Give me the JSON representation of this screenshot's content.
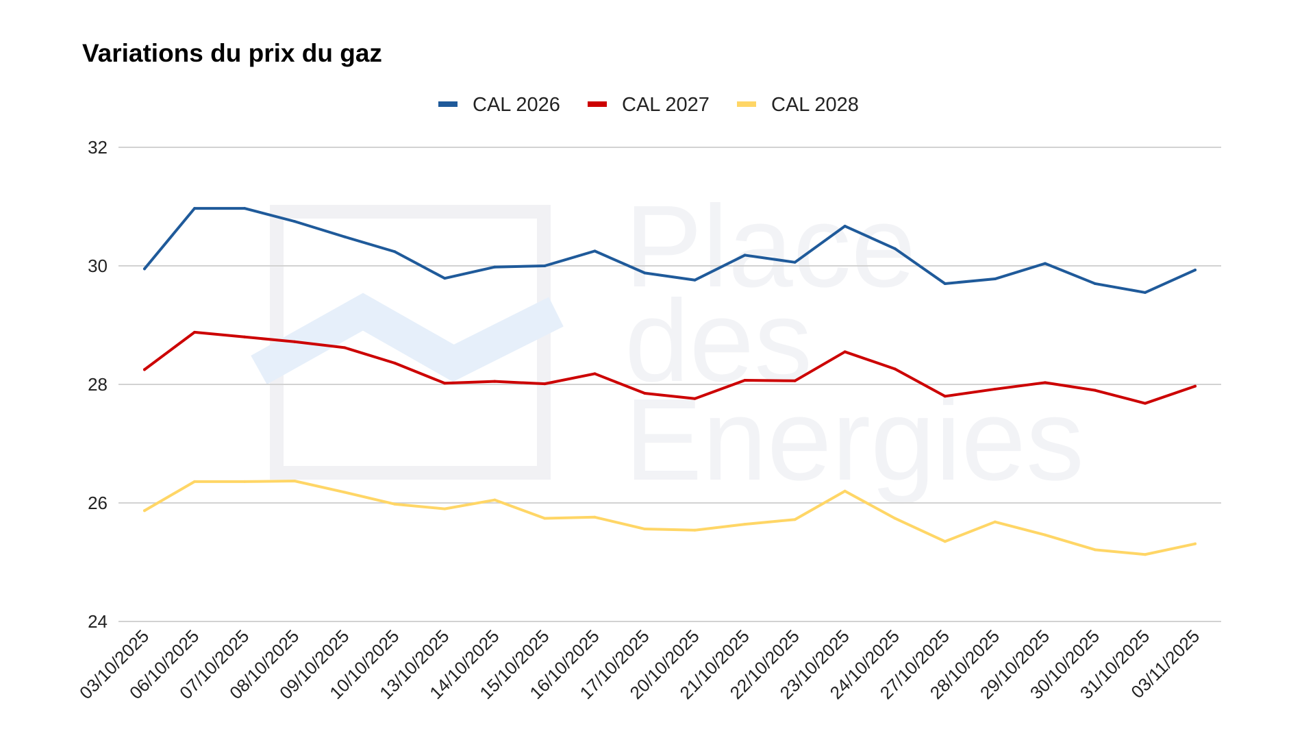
{
  "chart_data": {
    "type": "line",
    "title": "Variations du prix du gaz",
    "xlabel": "",
    "ylabel": "",
    "categories": [
      "03/10/2025",
      "06/10/2025",
      "07/10/2025",
      "08/10/2025",
      "09/10/2025",
      "10/10/2025",
      "13/10/2025",
      "14/10/2025",
      "15/10/2025",
      "16/10/2025",
      "17/10/2025",
      "20/10/2025",
      "21/10/2025",
      "22/10/2025",
      "23/10/2025",
      "24/10/2025",
      "27/10/2025",
      "28/10/2025",
      "29/10/2025",
      "30/10/2025",
      "31/10/2025",
      "03/11/2025"
    ],
    "series": [
      {
        "name": "CAL 2026",
        "color": "#1f5a9a",
        "values": [
          29.95,
          30.97,
          30.97,
          30.75,
          30.49,
          30.24,
          29.79,
          29.98,
          30.0,
          30.25,
          29.88,
          29.76,
          30.18,
          30.06,
          30.67,
          30.29,
          29.7,
          29.78,
          30.04,
          29.7,
          29.55,
          29.93
        ]
      },
      {
        "name": "CAL 2027",
        "color": "#cc0000",
        "values": [
          28.25,
          28.88,
          28.8,
          28.72,
          28.62,
          28.36,
          28.02,
          28.05,
          28.01,
          28.18,
          27.85,
          27.76,
          28.07,
          28.06,
          28.55,
          28.26,
          27.8,
          27.92,
          28.03,
          27.9,
          27.68,
          27.97
        ]
      },
      {
        "name": "CAL 2028",
        "color": "#ffd666",
        "values": [
          25.87,
          26.36,
          26.36,
          26.37,
          26.18,
          25.98,
          25.9,
          26.05,
          25.74,
          25.76,
          25.56,
          25.54,
          25.64,
          25.72,
          26.2,
          25.74,
          25.35,
          25.68,
          25.46,
          25.21,
          25.13,
          25.31
        ]
      }
    ],
    "ylim": [
      24,
      32
    ],
    "yticks": [
      "24",
      "26",
      "28",
      "30",
      "32"
    ],
    "grid": true,
    "legend_position": "top-center",
    "gridline_color": "#d2d2d2"
  },
  "watermark": {
    "lines": [
      "Place",
      "des",
      "Energies"
    ]
  }
}
